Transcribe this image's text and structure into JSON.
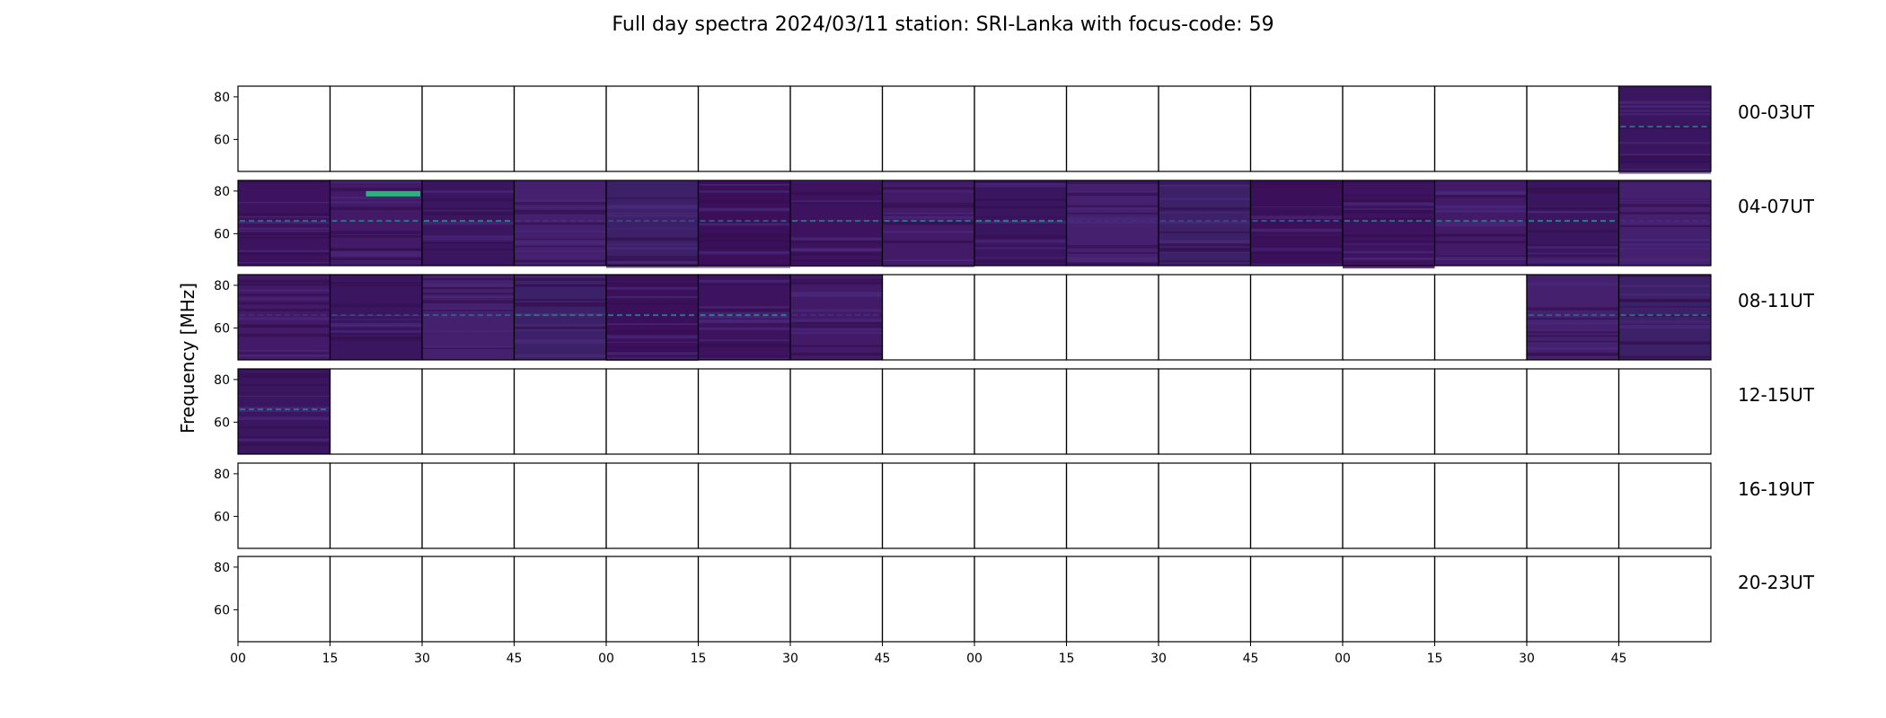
{
  "chart_data": {
    "type": "heatmap",
    "title": "Full day spectra 2024/03/11 station: SRI-Lanka with focus-code: 59",
    "ylabel": "Frequency [MHz]",
    "ylim": [
      45,
      85
    ],
    "yticks": [
      60,
      80
    ],
    "ytick_labels": [
      "60",
      "80"
    ],
    "xtick_labels": [
      "00",
      "15",
      "30",
      "45",
      "00",
      "15",
      "30",
      "45",
      "00",
      "15",
      "30",
      "45",
      "00",
      "15",
      "30",
      "45"
    ],
    "colormap": "viridis",
    "empty_color": "#ffffff",
    "rows": [
      {
        "label": "00-03UT",
        "has_data": [
          0,
          0,
          0,
          0,
          0,
          0,
          0,
          0,
          0,
          0,
          0,
          0,
          0,
          0,
          0,
          1
        ]
      },
      {
        "label": "04-07UT",
        "has_data": [
          1,
          1,
          1,
          1,
          1,
          1,
          1,
          1,
          1,
          1,
          1,
          1,
          1,
          1,
          1,
          1
        ]
      },
      {
        "label": "08-11UT",
        "has_data": [
          1,
          1,
          1,
          1,
          1,
          1,
          1,
          0,
          0,
          0,
          0,
          0,
          0,
          0,
          1,
          1
        ]
      },
      {
        "label": "12-15UT",
        "has_data": [
          1,
          0,
          0,
          0,
          0,
          0,
          0,
          0,
          0,
          0,
          0,
          0,
          0,
          0,
          0,
          0
        ]
      },
      {
        "label": "16-19UT",
        "has_data": [
          0,
          0,
          0,
          0,
          0,
          0,
          0,
          0,
          0,
          0,
          0,
          0,
          0,
          0,
          0,
          0
        ]
      },
      {
        "label": "20-23UT",
        "has_data": [
          0,
          0,
          0,
          0,
          0,
          0,
          0,
          0,
          0,
          0,
          0,
          0,
          0,
          0,
          0,
          0
        ]
      }
    ]
  }
}
